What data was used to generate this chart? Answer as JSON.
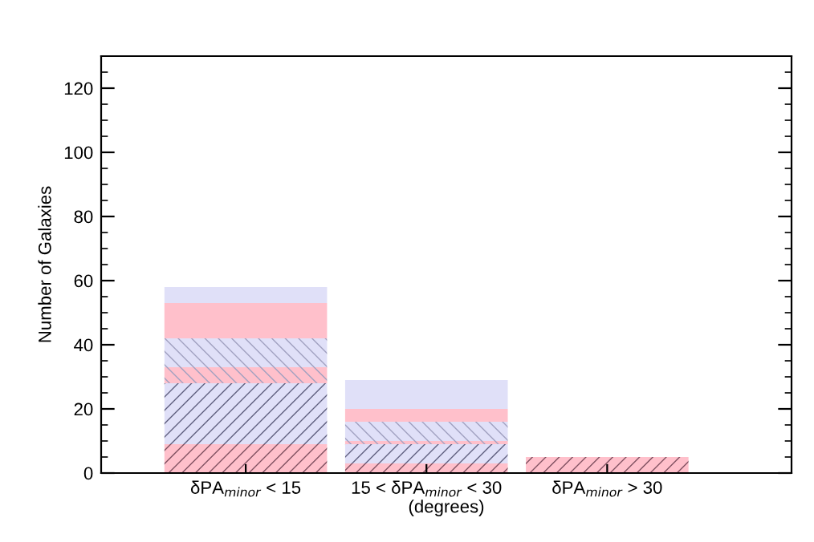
{
  "chart_data": {
    "type": "bar",
    "stacked": true,
    "categories": [
      "δPA$_{minor}$ < 15",
      "15 < δPA$_{minor}$ < 30",
      "δPA$_{minor}$ > 30"
    ],
    "xlabel": "(degrees)",
    "ylabel": "Number of Galaxies",
    "series": [
      {
        "color": "#ffc0cb",
        "values": [
          9,
          3,
          5
        ]
      },
      {
        "color": "#e0e0f8",
        "values": [
          19,
          6,
          0
        ]
      },
      {
        "color": "#ffc0cb",
        "values": [
          5,
          1,
          0
        ]
      },
      {
        "color": "#e0e0f8",
        "values": [
          9,
          6,
          0
        ]
      },
      {
        "color": "#ffc0cb",
        "values": [
          11,
          4,
          0
        ]
      },
      {
        "color": "#e0e0f8",
        "values": [
          5,
          9,
          0
        ]
      }
    ],
    "ylim": [
      0,
      130
    ],
    "yticks": [
      0,
      20,
      40,
      60,
      80,
      100,
      120
    ],
    "grid": false,
    "legend": false
  }
}
